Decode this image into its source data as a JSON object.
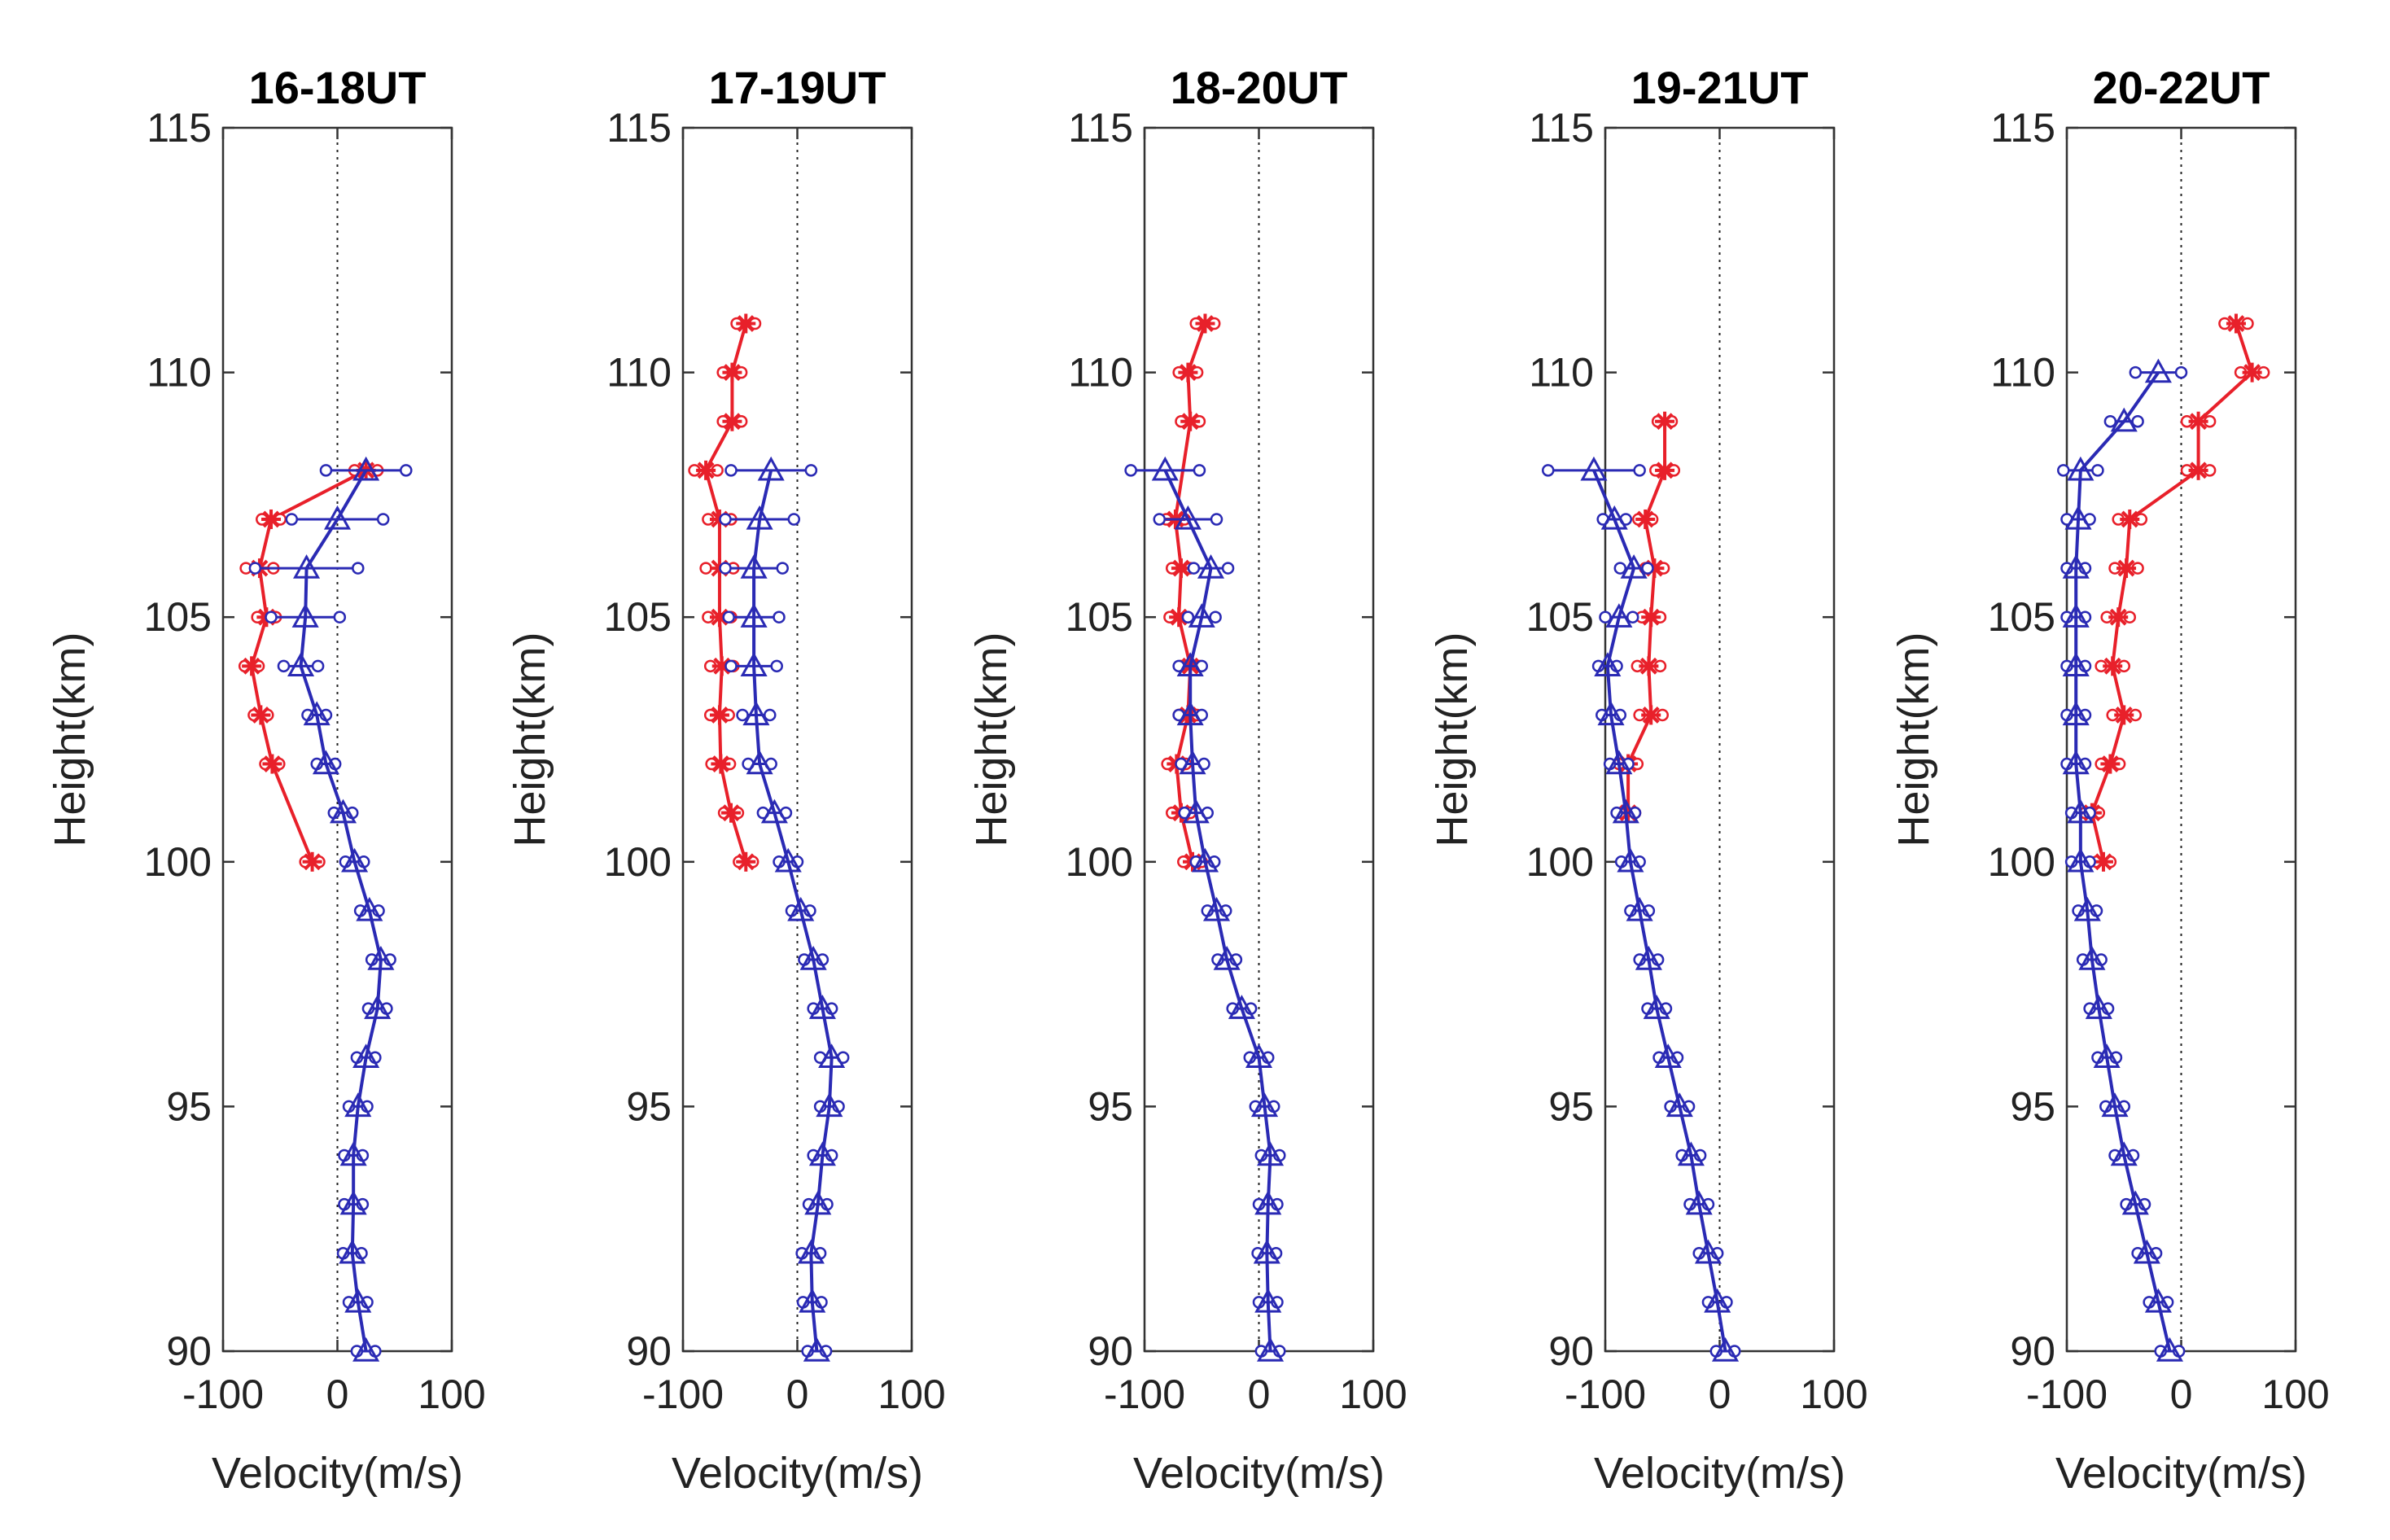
{
  "figure": {
    "panel_count": 5
  },
  "colors": {
    "red": "#e8202a",
    "blue": "#2a2ab4",
    "axis": "#333333"
  },
  "chart_data": [
    {
      "type": "line",
      "title": "16-18UT",
      "xlabel": "Velocity(m/s)",
      "ylabel": "Height(km)",
      "xlim": [
        -100,
        100
      ],
      "ylim": [
        90,
        115
      ],
      "xticks": [
        "-100",
        "0",
        "100"
      ],
      "yticks": [
        "90",
        "95",
        "100",
        "105",
        "110",
        "115"
      ],
      "zero_line": true,
      "series": [
        {
          "name": "red",
          "marker": "asterisk",
          "color": "#e8202a",
          "points": [
            {
              "h": 108,
              "v": 25,
              "err": 10
            },
            {
              "h": 107,
              "v": -58,
              "err": 8
            },
            {
              "h": 106,
              "v": -68,
              "err": 12
            },
            {
              "h": 105,
              "v": -62,
              "err": 8
            },
            {
              "h": 104,
              "v": -75,
              "err": 6
            },
            {
              "h": 103,
              "v": -67,
              "err": 6
            },
            {
              "h": 102,
              "v": -57,
              "err": 6
            },
            {
              "h": 100,
              "v": -22,
              "err": 6
            }
          ]
        },
        {
          "name": "blue",
          "marker": "triangle",
          "color": "#2a2ab4",
          "points": [
            {
              "h": 108,
              "v": 25,
              "err": 35
            },
            {
              "h": 107,
              "v": 0,
              "err": 40
            },
            {
              "h": 106,
              "v": -27,
              "err": 45
            },
            {
              "h": 105,
              "v": -28,
              "err": 30
            },
            {
              "h": 104,
              "v": -32,
              "err": 15
            },
            {
              "h": 103,
              "v": -18,
              "err": 8
            },
            {
              "h": 102,
              "v": -10,
              "err": 8
            },
            {
              "h": 101,
              "v": 5,
              "err": 8
            },
            {
              "h": 100,
              "v": 15,
              "err": 8
            },
            {
              "h": 99,
              "v": 28,
              "err": 8
            },
            {
              "h": 98,
              "v": 38,
              "err": 8
            },
            {
              "h": 97,
              "v": 35,
              "err": 8
            },
            {
              "h": 96,
              "v": 25,
              "err": 8
            },
            {
              "h": 95,
              "v": 18,
              "err": 8
            },
            {
              "h": 94,
              "v": 14,
              "err": 8
            },
            {
              "h": 93,
              "v": 14,
              "err": 8
            },
            {
              "h": 92,
              "v": 13,
              "err": 8
            },
            {
              "h": 91,
              "v": 18,
              "err": 8
            },
            {
              "h": 90,
              "v": 25,
              "err": 8
            }
          ]
        }
      ]
    },
    {
      "type": "line",
      "title": "17-19UT",
      "xlabel": "Velocity(m/s)",
      "ylabel": "Height(km)",
      "xlim": [
        -100,
        100
      ],
      "ylim": [
        90,
        115
      ],
      "xticks": [
        "-100",
        "0",
        "100"
      ],
      "yticks": [
        "90",
        "95",
        "100",
        "105",
        "110",
        "115"
      ],
      "zero_line": true,
      "series": [
        {
          "name": "red",
          "marker": "asterisk",
          "color": "#e8202a",
          "points": [
            {
              "h": 111,
              "v": -45,
              "err": 8
            },
            {
              "h": 110,
              "v": -57,
              "err": 8
            },
            {
              "h": 109,
              "v": -57,
              "err": 8
            },
            {
              "h": 108,
              "v": -80,
              "err": 10
            },
            {
              "h": 107,
              "v": -68,
              "err": 10
            },
            {
              "h": 106,
              "v": -68,
              "err": 12
            },
            {
              "h": 105,
              "v": -68,
              "err": 10
            },
            {
              "h": 104,
              "v": -66,
              "err": 10
            },
            {
              "h": 103,
              "v": -68,
              "err": 8
            },
            {
              "h": 102,
              "v": -67,
              "err": 8
            },
            {
              "h": 101,
              "v": -58,
              "err": 6
            },
            {
              "h": 100,
              "v": -45,
              "err": 6
            }
          ]
        },
        {
          "name": "blue",
          "marker": "triangle",
          "color": "#2a2ab4",
          "points": [
            {
              "h": 108,
              "v": -23,
              "err": 35
            },
            {
              "h": 107,
              "v": -33,
              "err": 30
            },
            {
              "h": 106,
              "v": -38,
              "err": 25
            },
            {
              "h": 105,
              "v": -38,
              "err": 22
            },
            {
              "h": 104,
              "v": -38,
              "err": 20
            },
            {
              "h": 103,
              "v": -36,
              "err": 12
            },
            {
              "h": 102,
              "v": -33,
              "err": 10
            },
            {
              "h": 101,
              "v": -20,
              "err": 10
            },
            {
              "h": 100,
              "v": -8,
              "err": 8
            },
            {
              "h": 99,
              "v": 3,
              "err": 8
            },
            {
              "h": 98,
              "v": 14,
              "err": 8
            },
            {
              "h": 97,
              "v": 22,
              "err": 8
            },
            {
              "h": 96,
              "v": 30,
              "err": 10
            },
            {
              "h": 95,
              "v": 28,
              "err": 8
            },
            {
              "h": 94,
              "v": 22,
              "err": 8
            },
            {
              "h": 93,
              "v": 18,
              "err": 8
            },
            {
              "h": 92,
              "v": 12,
              "err": 8
            },
            {
              "h": 91,
              "v": 13,
              "err": 8
            },
            {
              "h": 90,
              "v": 17,
              "err": 8
            }
          ]
        }
      ]
    },
    {
      "type": "line",
      "title": "18-20UT",
      "xlabel": "Velocity(m/s)",
      "ylabel": "Height(km)",
      "xlim": [
        -100,
        100
      ],
      "ylim": [
        90,
        115
      ],
      "xticks": [
        "-100",
        "0",
        "100"
      ],
      "yticks": [
        "90",
        "95",
        "100",
        "105",
        "110",
        "115"
      ],
      "zero_line": true,
      "series": [
        {
          "name": "red",
          "marker": "asterisk",
          "color": "#e8202a",
          "points": [
            {
              "h": 111,
              "v": -47,
              "err": 8
            },
            {
              "h": 110,
              "v": -62,
              "err": 8
            },
            {
              "h": 109,
              "v": -60,
              "err": 8
            },
            {
              "h": 107,
              "v": -73,
              "err": 8
            },
            {
              "h": 106,
              "v": -68,
              "err": 8
            },
            {
              "h": 105,
              "v": -70,
              "err": 8
            },
            {
              "h": 104,
              "v": -60,
              "err": 8
            },
            {
              "h": 103,
              "v": -62,
              "err": 8
            },
            {
              "h": 102,
              "v": -72,
              "err": 8
            },
            {
              "h": 101,
              "v": -68,
              "err": 8
            },
            {
              "h": 100,
              "v": -58,
              "err": 8
            }
          ]
        },
        {
          "name": "blue",
          "marker": "triangle",
          "color": "#2a2ab4",
          "points": [
            {
              "h": 108,
              "v": -82,
              "err": 30
            },
            {
              "h": 107,
              "v": -62,
              "err": 25
            },
            {
              "h": 106,
              "v": -42,
              "err": 15
            },
            {
              "h": 105,
              "v": -50,
              "err": 12
            },
            {
              "h": 104,
              "v": -60,
              "err": 10
            },
            {
              "h": 103,
              "v": -60,
              "err": 10
            },
            {
              "h": 102,
              "v": -58,
              "err": 10
            },
            {
              "h": 101,
              "v": -55,
              "err": 10
            },
            {
              "h": 100,
              "v": -47,
              "err": 8
            },
            {
              "h": 99,
              "v": -37,
              "err": 8
            },
            {
              "h": 98,
              "v": -28,
              "err": 8
            },
            {
              "h": 97,
              "v": -15,
              "err": 8
            },
            {
              "h": 96,
              "v": 0,
              "err": 8
            },
            {
              "h": 95,
              "v": 5,
              "err": 8
            },
            {
              "h": 94,
              "v": 10,
              "err": 8
            },
            {
              "h": 93,
              "v": 8,
              "err": 8
            },
            {
              "h": 92,
              "v": 7,
              "err": 8
            },
            {
              "h": 91,
              "v": 8,
              "err": 8
            },
            {
              "h": 90,
              "v": 10,
              "err": 8
            }
          ]
        }
      ]
    },
    {
      "type": "line",
      "title": "19-21UT",
      "xlabel": "Velocity(m/s)",
      "ylabel": "Height(km)",
      "xlim": [
        -100,
        100
      ],
      "ylim": [
        90,
        115
      ],
      "xticks": [
        "-100",
        "0",
        "100"
      ],
      "yticks": [
        "90",
        "95",
        "100",
        "105",
        "110",
        "115"
      ],
      "zero_line": true,
      "series": [
        {
          "name": "red",
          "marker": "asterisk",
          "color": "#e8202a",
          "points": [
            {
              "h": 109,
              "v": -48,
              "err": 6
            },
            {
              "h": 108,
              "v": -48,
              "err": 8
            },
            {
              "h": 107,
              "v": -65,
              "err": 6
            },
            {
              "h": 106,
              "v": -57,
              "err": 8
            },
            {
              "h": 105,
              "v": -60,
              "err": 8
            },
            {
              "h": 104,
              "v": -62,
              "err": 10
            },
            {
              "h": 103,
              "v": -60,
              "err": 10
            },
            {
              "h": 102,
              "v": -80,
              "err": 8
            },
            {
              "h": 101,
              "v": -80,
              "err": 6
            }
          ]
        },
        {
          "name": "blue",
          "marker": "triangle",
          "color": "#2a2ab4",
          "points": [
            {
              "h": 108,
              "v": -110,
              "err": 40
            },
            {
              "h": 107,
              "v": -92,
              "err": 10
            },
            {
              "h": 106,
              "v": -75,
              "err": 12
            },
            {
              "h": 105,
              "v": -88,
              "err": 12
            },
            {
              "h": 104,
              "v": -98,
              "err": 8
            },
            {
              "h": 103,
              "v": -95,
              "err": 8
            },
            {
              "h": 102,
              "v": -88,
              "err": 8
            },
            {
              "h": 101,
              "v": -82,
              "err": 8
            },
            {
              "h": 100,
              "v": -78,
              "err": 8
            },
            {
              "h": 99,
              "v": -70,
              "err": 8
            },
            {
              "h": 98,
              "v": -62,
              "err": 8
            },
            {
              "h": 97,
              "v": -55,
              "err": 8
            },
            {
              "h": 96,
              "v": -45,
              "err": 8
            },
            {
              "h": 95,
              "v": -35,
              "err": 8
            },
            {
              "h": 94,
              "v": -25,
              "err": 8
            },
            {
              "h": 93,
              "v": -18,
              "err": 8
            },
            {
              "h": 92,
              "v": -10,
              "err": 8
            },
            {
              "h": 91,
              "v": -2,
              "err": 8
            },
            {
              "h": 90,
              "v": 5,
              "err": 8
            }
          ]
        }
      ]
    },
    {
      "type": "line",
      "title": "20-22UT",
      "xlabel": "Velocity(m/s)",
      "ylabel": "Height(km)",
      "xlim": [
        -100,
        100
      ],
      "ylim": [
        90,
        115
      ],
      "xticks": [
        "-100",
        "0",
        "100"
      ],
      "yticks": [
        "90",
        "95",
        "100",
        "105",
        "110",
        "115"
      ],
      "zero_line": true,
      "series": [
        {
          "name": "red",
          "marker": "asterisk",
          "color": "#e8202a",
          "points": [
            {
              "h": 111,
              "v": 48,
              "err": 10
            },
            {
              "h": 110,
              "v": 62,
              "err": 10
            },
            {
              "h": 109,
              "v": 15,
              "err": 10
            },
            {
              "h": 108,
              "v": 15,
              "err": 10
            },
            {
              "h": 107,
              "v": -45,
              "err": 10
            },
            {
              "h": 106,
              "v": -48,
              "err": 10
            },
            {
              "h": 105,
              "v": -55,
              "err": 10
            },
            {
              "h": 104,
              "v": -60,
              "err": 10
            },
            {
              "h": 103,
              "v": -50,
              "err": 10
            },
            {
              "h": 102,
              "v": -62,
              "err": 8
            },
            {
              "h": 101,
              "v": -78,
              "err": 6
            },
            {
              "h": 100,
              "v": -68,
              "err": 6
            }
          ]
        },
        {
          "name": "blue",
          "marker": "triangle",
          "color": "#2a2ab4",
          "points": [
            {
              "h": 110,
              "v": -20,
              "err": 20
            },
            {
              "h": 109,
              "v": -50,
              "err": 12
            },
            {
              "h": 108,
              "v": -88,
              "err": 15
            },
            {
              "h": 107,
              "v": -90,
              "err": 10
            },
            {
              "h": 106,
              "v": -92,
              "err": 8
            },
            {
              "h": 105,
              "v": -92,
              "err": 8
            },
            {
              "h": 104,
              "v": -92,
              "err": 8
            },
            {
              "h": 103,
              "v": -92,
              "err": 8
            },
            {
              "h": 102,
              "v": -92,
              "err": 8
            },
            {
              "h": 101,
              "v": -88,
              "err": 8
            },
            {
              "h": 100,
              "v": -88,
              "err": 8
            },
            {
              "h": 99,
              "v": -82,
              "err": 8
            },
            {
              "h": 98,
              "v": -78,
              "err": 8
            },
            {
              "h": 97,
              "v": -72,
              "err": 8
            },
            {
              "h": 96,
              "v": -65,
              "err": 8
            },
            {
              "h": 95,
              "v": -58,
              "err": 8
            },
            {
              "h": 94,
              "v": -50,
              "err": 8
            },
            {
              "h": 93,
              "v": -40,
              "err": 8
            },
            {
              "h": 92,
              "v": -30,
              "err": 8
            },
            {
              "h": 91,
              "v": -20,
              "err": 8
            },
            {
              "h": 90,
              "v": -10,
              "err": 8
            }
          ]
        }
      ]
    }
  ]
}
